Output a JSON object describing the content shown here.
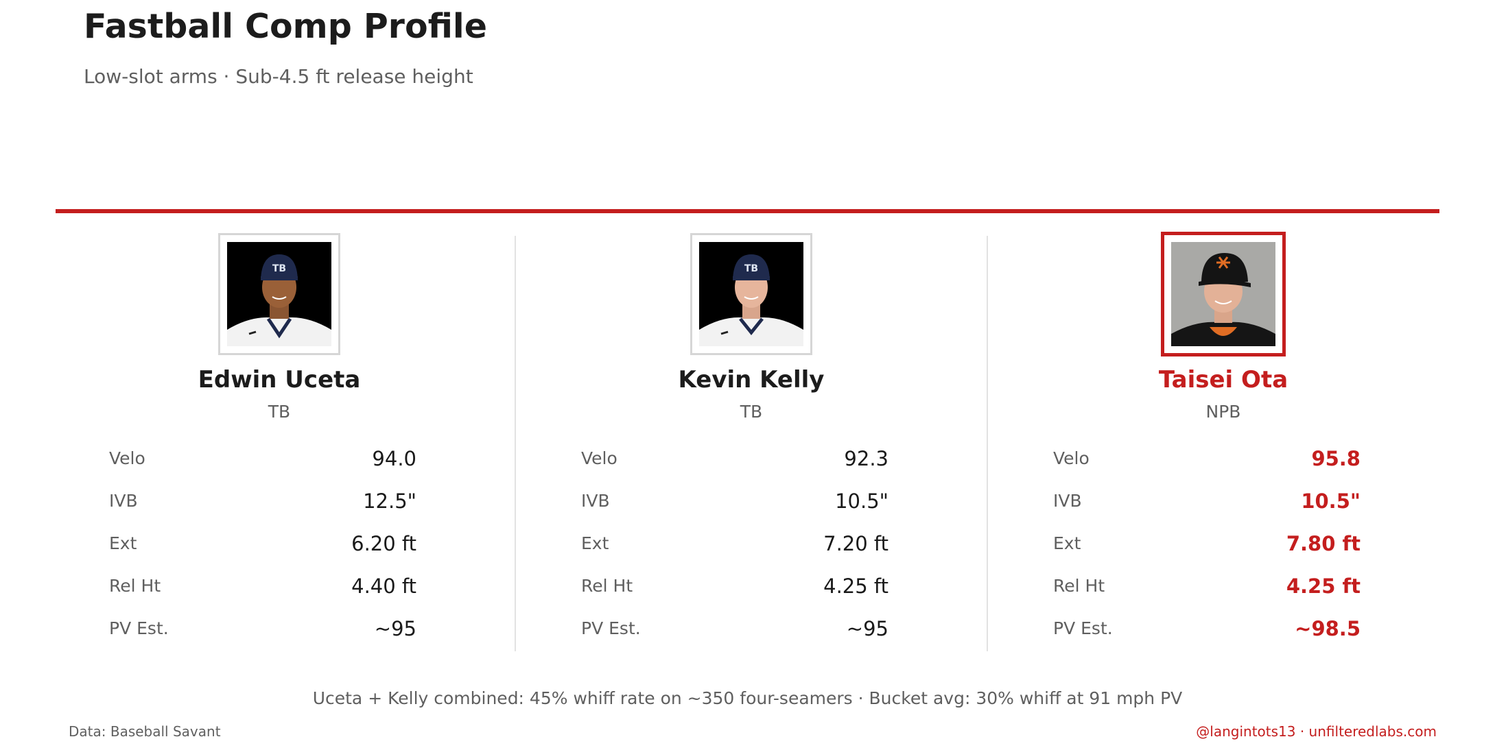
{
  "header": {
    "title": "Fastball Comp Profile",
    "subtitle": "Low-slot arms · Sub-4.5 ft release height"
  },
  "colors": {
    "accent": "#c41e1e",
    "text": "#1a1a1a",
    "muted": "#5f5f5f",
    "divider": "#e2e2e2"
  },
  "players": [
    {
      "name": "Edwin Uceta",
      "team": "TB",
      "highlight": false,
      "photo_icon": "player-headshot-icon",
      "stats": [
        {
          "label": "Velo",
          "value": "94.0"
        },
        {
          "label": "IVB",
          "value": "12.5\""
        },
        {
          "label": "Ext",
          "value": "6.20 ft"
        },
        {
          "label": "Rel Ht",
          "value": "4.40 ft"
        },
        {
          "label": "PV Est.",
          "value": "~95"
        }
      ]
    },
    {
      "name": "Kevin Kelly",
      "team": "TB",
      "highlight": false,
      "photo_icon": "player-headshot-icon",
      "stats": [
        {
          "label": "Velo",
          "value": "92.3"
        },
        {
          "label": "IVB",
          "value": "10.5\""
        },
        {
          "label": "Ext",
          "value": "7.20 ft"
        },
        {
          "label": "Rel Ht",
          "value": "4.25 ft"
        },
        {
          "label": "PV Est.",
          "value": "~95"
        }
      ]
    },
    {
      "name": "Taisei Ota",
      "team": "NPB",
      "highlight": true,
      "photo_icon": "player-headshot-icon",
      "stats": [
        {
          "label": "Velo",
          "value": "95.8"
        },
        {
          "label": "IVB",
          "value": "10.5\""
        },
        {
          "label": "Ext",
          "value": "7.80 ft"
        },
        {
          "label": "Rel Ht",
          "value": "4.25 ft"
        },
        {
          "label": "PV Est.",
          "value": "~98.5"
        }
      ]
    }
  ],
  "footer": {
    "note": "Uceta + Kelly combined: 45% whiff rate on ~350 four-seamers  ·  Bucket avg: 30% whiff at 91 mph PV",
    "source": "Data: Baseball Savant",
    "credits": "@langintots13  ·  unfilteredlabs.com"
  }
}
